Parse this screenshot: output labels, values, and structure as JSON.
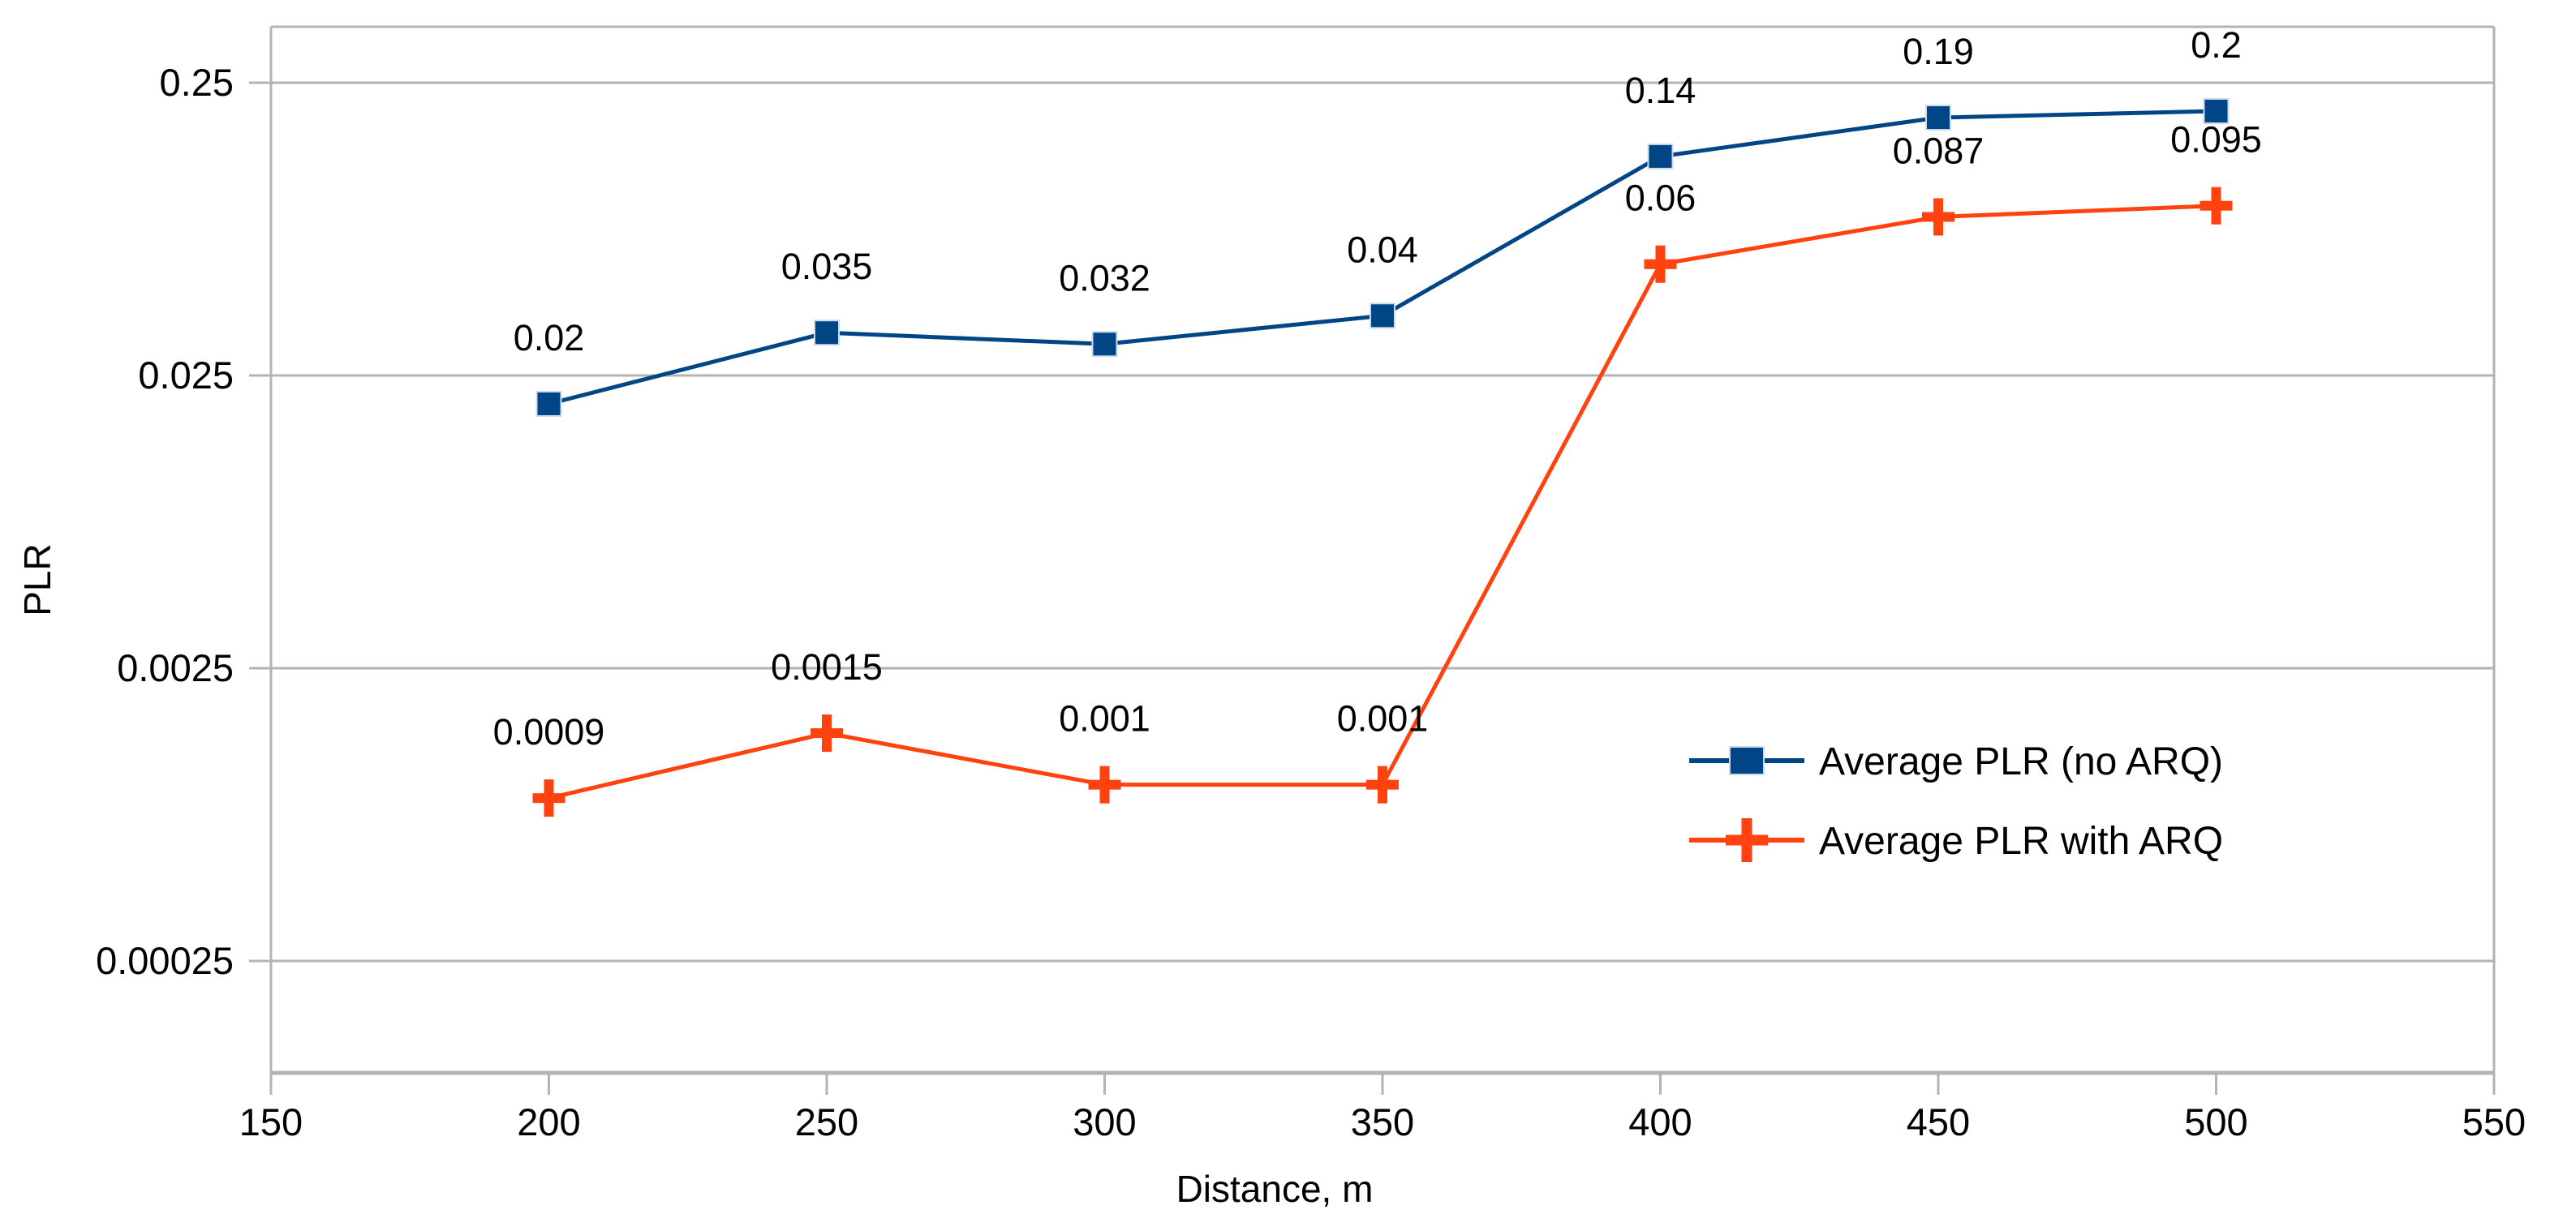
{
  "chart_data": {
    "type": "line",
    "title": "",
    "xlabel": "Distance, m",
    "ylabel": "PLR",
    "x": [
      200,
      250,
      300,
      350,
      400,
      450,
      500
    ],
    "x_axis": {
      "min": 150,
      "max": 550,
      "ticks": [
        150,
        200,
        250,
        300,
        350,
        400,
        450,
        500,
        550
      ],
      "tick_labels": [
        "150",
        "200",
        "250",
        "300",
        "350",
        "400",
        "450",
        "500",
        "550"
      ]
    },
    "y_axis": {
      "scale": "log",
      "min": 0.0001,
      "max": 0.38,
      "ticks": [
        0.25,
        0.025,
        0.0025,
        0.00025
      ],
      "tick_labels": [
        "0.25",
        "0.025",
        "0.0025",
        "0.00025"
      ]
    },
    "series": [
      {
        "name": "Average PLR (no ARQ)",
        "marker": "square",
        "color": "#004586",
        "values": [
          0.02,
          0.035,
          0.032,
          0.04,
          0.14,
          0.19,
          0.2
        ],
        "labels": [
          "0.02",
          "0.035",
          "0.032",
          "0.04",
          "0.14",
          "0.19",
          "0.2"
        ]
      },
      {
        "name": "Average PLR with ARQ",
        "marker": "plus",
        "color": "#FF420E",
        "values": [
          0.0009,
          0.0015,
          0.001,
          0.001,
          0.06,
          0.087,
          0.095
        ],
        "labels": [
          "0.0009",
          "0.0015",
          "0.001",
          "0.001",
          "0.06",
          "0.087",
          "0.095"
        ]
      }
    ],
    "legend": {
      "position": "right-center"
    },
    "grid": "horizontal",
    "colors": {
      "grid": "#b3b3b3",
      "axis": "#b3b3b3",
      "text": "#000000",
      "background": "#ffffff"
    }
  }
}
